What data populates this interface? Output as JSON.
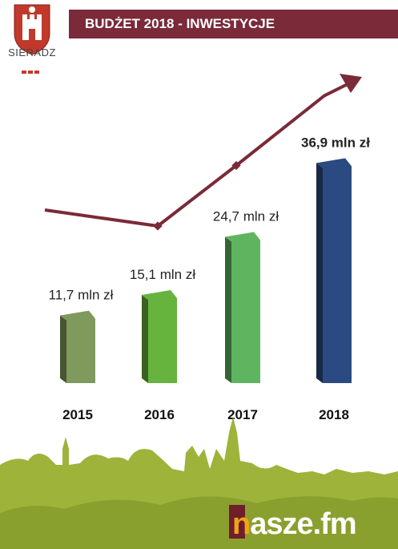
{
  "header": {
    "title": "BUDŻET 2018 - INWESTYCJE"
  },
  "logo": {
    "city": "SIERADZ"
  },
  "footer": {
    "brand_first": "n",
    "brand_rest": "asze.fm"
  },
  "colors": {
    "header": "#7a2a38",
    "trend": "#7a2a38",
    "bar_2015": "#7f9a5c",
    "bar_2016": "#66b33e",
    "bar_2017": "#5fb55f",
    "bar_2018": "#2c4a82",
    "skyline": "#9eb33a"
  },
  "chart_data": {
    "type": "bar",
    "title": "BUDŻET 2018 - INWESTYCJE",
    "categories": [
      "2015",
      "2016",
      "2017",
      "2018"
    ],
    "values": [
      11.7,
      15.1,
      24.7,
      36.9
    ],
    "value_labels": [
      "11,7 mln zł",
      "15,1 mln zł",
      "24,7 mln zł",
      "36,9 mln zł"
    ],
    "unit": "mln zł",
    "ylim": [
      0,
      40
    ],
    "grid": false,
    "trend_arrow": true
  }
}
